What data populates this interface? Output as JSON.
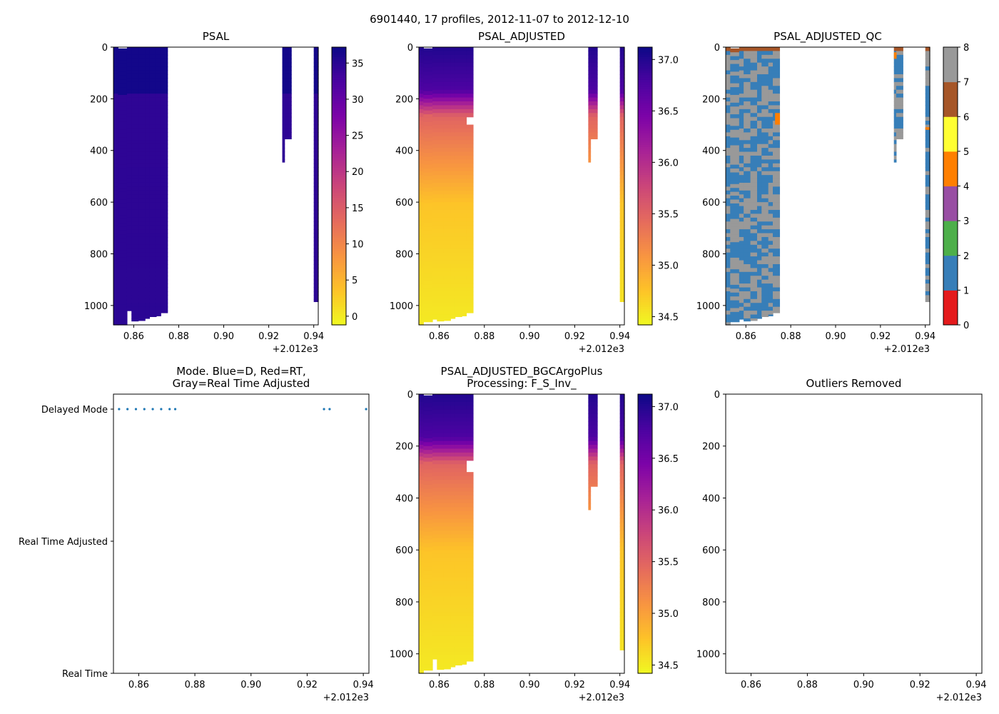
{
  "suptitle": "6901440, 17 profiles, 2012-11-07 to 2012-12-10",
  "offset_label": "+2.012e3",
  "chart_data": [
    {
      "id": "psal",
      "type": "heatmap",
      "title_lines": [
        "PSAL"
      ],
      "xlim": [
        2012.851,
        2012.942
      ],
      "ylim": [
        1075,
        0
      ],
      "xticks": [
        "0.86",
        "0.88",
        "0.90",
        "0.92",
        "0.94"
      ],
      "xtick_values": [
        2012.86,
        2012.88,
        2012.9,
        2012.92,
        2012.94
      ],
      "yticks": [
        "0",
        "200",
        "400",
        "600",
        "800",
        "1000"
      ],
      "ytick_values": [
        0,
        200,
        400,
        600,
        800,
        1000
      ],
      "colormap": "plasma_r",
      "vmin": -1.2,
      "vmax": 37.2,
      "colorbar_ticks": [
        "0",
        "5",
        "10",
        "15",
        "20",
        "25",
        "30",
        "35"
      ],
      "colorbar_values": [
        0,
        5,
        10,
        15,
        20,
        25,
        30,
        35
      ],
      "profiles": [
        {
          "x0": 2012.851,
          "x1": 2012.853,
          "start": 0,
          "max_depth": 1075
        },
        {
          "x0": 2012.853,
          "x1": 2012.857,
          "start": 5,
          "max_depth": 1075
        },
        {
          "x0": 2012.857,
          "x1": 2012.859,
          "start": 0,
          "max_depth": 1020
        },
        {
          "x0": 2012.859,
          "x1": 2012.862,
          "start": 0,
          "max_depth": 1060
        },
        {
          "x0": 2012.862,
          "x1": 2012.865,
          "start": 0,
          "max_depth": 1058
        },
        {
          "x0": 2012.865,
          "x1": 2012.867,
          "start": 0,
          "max_depth": 1050
        },
        {
          "x0": 2012.867,
          "x1": 2012.87,
          "start": 0,
          "max_depth": 1043
        },
        {
          "x0": 2012.87,
          "x1": 2012.872,
          "start": 0,
          "max_depth": 1040
        },
        {
          "x0": 2012.872,
          "x1": 2012.875,
          "start": 0,
          "max_depth": 1028
        },
        {
          "x0": 2012.926,
          "x1": 2012.927,
          "start": 0,
          "max_depth": 445
        },
        {
          "x0": 2012.927,
          "x1": 2012.93,
          "start": 0,
          "max_depth": 355
        },
        {
          "x0": 2012.94,
          "x1": 2012.942,
          "start": 0,
          "max_depth": 985
        }
      ]
    },
    {
      "id": "psal-adjusted",
      "type": "heatmap",
      "title_lines": [
        "PSAL_ADJUSTED"
      ],
      "xlim": [
        2012.851,
        2012.942
      ],
      "ylim": [
        1075,
        0
      ],
      "xticks": [
        "0.86",
        "0.88",
        "0.90",
        "0.92",
        "0.94"
      ],
      "xtick_values": [
        2012.86,
        2012.88,
        2012.9,
        2012.92,
        2012.94
      ],
      "yticks": [
        "0",
        "200",
        "400",
        "600",
        "800",
        "1000"
      ],
      "ytick_values": [
        0,
        200,
        400,
        600,
        800,
        1000
      ],
      "colormap": "plasma_r",
      "vmin": 34.42,
      "vmax": 37.12,
      "colorbar_ticks": [
        "34.5",
        "35.0",
        "35.5",
        "36.0",
        "36.5",
        "37.0"
      ],
      "colorbar_values": [
        34.5,
        35.0,
        35.5,
        36.0,
        36.5,
        37.0
      ],
      "profiles": [
        {
          "x0": 2012.851,
          "x1": 2012.853,
          "start": 0,
          "max_depth": 1075
        },
        {
          "x0": 2012.853,
          "x1": 2012.857,
          "start": 5,
          "max_depth": 1063
        },
        {
          "x0": 2012.857,
          "x1": 2012.859,
          "start": 0,
          "max_depth": 1053
        },
        {
          "x0": 2012.859,
          "x1": 2012.862,
          "start": 0,
          "max_depth": 1060
        },
        {
          "x0": 2012.862,
          "x1": 2012.865,
          "start": 0,
          "max_depth": 1058
        },
        {
          "x0": 2012.865,
          "x1": 2012.867,
          "start": 0,
          "max_depth": 1050
        },
        {
          "x0": 2012.867,
          "x1": 2012.87,
          "start": 0,
          "max_depth": 1043
        },
        {
          "x0": 2012.87,
          "x1": 2012.872,
          "start": 0,
          "max_depth": 1040
        },
        {
          "x0": 2012.872,
          "x1": 2012.875,
          "start": 0,
          "max_depth": 1028,
          "gap": [
            265,
            295
          ]
        },
        {
          "x0": 2012.926,
          "x1": 2012.927,
          "start": 0,
          "max_depth": 445
        },
        {
          "x0": 2012.927,
          "x1": 2012.93,
          "start": 0,
          "max_depth": 355
        },
        {
          "x0": 2012.94,
          "x1": 2012.942,
          "start": 0,
          "max_depth": 985
        }
      ]
    },
    {
      "id": "psal-adjusted-qc",
      "type": "heatmap",
      "title_lines": [
        "PSAL_ADJUSTED_QC"
      ],
      "xlim": [
        2012.851,
        2012.942
      ],
      "ylim": [
        1075,
        0
      ],
      "xticks": [
        "0.86",
        "0.88",
        "0.90",
        "0.92",
        "0.94"
      ],
      "xtick_values": [
        2012.86,
        2012.88,
        2012.9,
        2012.92,
        2012.94
      ],
      "yticks": [
        "0",
        "200",
        "400",
        "600",
        "800",
        "1000"
      ],
      "ytick_values": [
        0,
        200,
        400,
        600,
        800,
        1000
      ],
      "colormap": "qc",
      "vmin": 0,
      "vmax": 8,
      "colorbar_ticks": [
        "0",
        "1",
        "2",
        "3",
        "4",
        "5",
        "6",
        "7",
        "8"
      ],
      "colorbar_values": [
        0,
        1,
        2,
        3,
        4,
        5,
        6,
        7,
        8
      ],
      "qc_colors": [
        "#e41a1c",
        "#377eb8",
        "#4daf4a",
        "#984ea3",
        "#ff7f00",
        "#ffff33",
        "#a65628",
        "#f781bf",
        "#999999"
      ],
      "profiles": [
        {
          "x0": 2012.851,
          "x1": 2012.853,
          "start": 0,
          "max_depth": 1075
        },
        {
          "x0": 2012.853,
          "x1": 2012.857,
          "start": 5,
          "max_depth": 1063
        },
        {
          "x0": 2012.857,
          "x1": 2012.859,
          "start": 0,
          "max_depth": 1053
        },
        {
          "x0": 2012.859,
          "x1": 2012.862,
          "start": 0,
          "max_depth": 1060
        },
        {
          "x0": 2012.862,
          "x1": 2012.865,
          "start": 0,
          "max_depth": 1058
        },
        {
          "x0": 2012.865,
          "x1": 2012.867,
          "start": 0,
          "max_depth": 1050
        },
        {
          "x0": 2012.867,
          "x1": 2012.87,
          "start": 0,
          "max_depth": 1043
        },
        {
          "x0": 2012.87,
          "x1": 2012.872,
          "start": 0,
          "max_depth": 1040
        },
        {
          "x0": 2012.872,
          "x1": 2012.875,
          "start": 0,
          "max_depth": 1028
        },
        {
          "x0": 2012.926,
          "x1": 2012.927,
          "start": 0,
          "max_depth": 445
        },
        {
          "x0": 2012.927,
          "x1": 2012.93,
          "start": 0,
          "max_depth": 355
        },
        {
          "x0": 2012.94,
          "x1": 2012.942,
          "start": 0,
          "max_depth": 985
        }
      ],
      "qc4_patches": [
        {
          "x0": 2012.873,
          "x1": 2012.875,
          "d0": 255,
          "d1": 300
        },
        {
          "x0": 2012.926,
          "x1": 2012.927,
          "d0": 20,
          "d1": 45
        },
        {
          "x0": 2012.94,
          "x1": 2012.942,
          "d0": 310,
          "d1": 320
        }
      ]
    },
    {
      "id": "mode",
      "type": "scatter",
      "title_lines": [
        "Mode. Blue=D, Red=RT,",
        "Gray=Real Time Adjusted"
      ],
      "xlim": [
        2012.851,
        2012.942
      ],
      "xticks": [
        "0.86",
        "0.88",
        "0.90",
        "0.92",
        "0.94"
      ],
      "xtick_values": [
        2012.86,
        2012.88,
        2012.9,
        2012.92,
        2012.94
      ],
      "categories": [
        "Delayed Mode",
        "Real Time Adjusted",
        "Real Time"
      ],
      "point_color": "#1f77b4",
      "points": [
        {
          "x": 2012.853,
          "mode": "Delayed Mode"
        },
        {
          "x": 2012.856,
          "mode": "Delayed Mode"
        },
        {
          "x": 2012.859,
          "mode": "Delayed Mode"
        },
        {
          "x": 2012.862,
          "mode": "Delayed Mode"
        },
        {
          "x": 2012.865,
          "mode": "Delayed Mode"
        },
        {
          "x": 2012.868,
          "mode": "Delayed Mode"
        },
        {
          "x": 2012.871,
          "mode": "Delayed Mode"
        },
        {
          "x": 2012.873,
          "mode": "Delayed Mode"
        },
        {
          "x": 2012.926,
          "mode": "Delayed Mode"
        },
        {
          "x": 2012.928,
          "mode": "Delayed Mode"
        },
        {
          "x": 2012.941,
          "mode": "Delayed Mode"
        }
      ]
    },
    {
      "id": "psal-bgcargoplus",
      "type": "heatmap",
      "title_lines": [
        "PSAL_ADJUSTED_BGCArgoPlus",
        "Processing: F_S_Inv_"
      ],
      "xlim": [
        2012.851,
        2012.942
      ],
      "ylim": [
        1075,
        0
      ],
      "xticks": [
        "0.86",
        "0.88",
        "0.90",
        "0.92",
        "0.94"
      ],
      "xtick_values": [
        2012.86,
        2012.88,
        2012.9,
        2012.92,
        2012.94
      ],
      "yticks": [
        "0",
        "200",
        "400",
        "600",
        "800",
        "1000"
      ],
      "ytick_values": [
        0,
        200,
        400,
        600,
        800,
        1000
      ],
      "colormap": "plasma_r",
      "vmin": 34.42,
      "vmax": 37.12,
      "colorbar_ticks": [
        "34.5",
        "35.0",
        "35.5",
        "36.0",
        "36.5",
        "37.0"
      ],
      "colorbar_values": [
        34.5,
        35.0,
        35.5,
        36.0,
        36.5,
        37.0
      ],
      "profiles": [
        {
          "x0": 2012.851,
          "x1": 2012.853,
          "start": 0,
          "max_depth": 1075
        },
        {
          "x0": 2012.853,
          "x1": 2012.857,
          "start": 5,
          "max_depth": 1063
        },
        {
          "x0": 2012.857,
          "x1": 2012.859,
          "start": 0,
          "max_depth": 1020
        },
        {
          "x0": 2012.859,
          "x1": 2012.862,
          "start": 0,
          "max_depth": 1060
        },
        {
          "x0": 2012.862,
          "x1": 2012.865,
          "start": 0,
          "max_depth": 1058
        },
        {
          "x0": 2012.865,
          "x1": 2012.867,
          "start": 0,
          "max_depth": 1050
        },
        {
          "x0": 2012.867,
          "x1": 2012.87,
          "start": 0,
          "max_depth": 1043
        },
        {
          "x0": 2012.87,
          "x1": 2012.872,
          "start": 0,
          "max_depth": 1040
        },
        {
          "x0": 2012.872,
          "x1": 2012.875,
          "start": 0,
          "max_depth": 1028,
          "gap": [
            255,
            290
          ]
        },
        {
          "x0": 2012.926,
          "x1": 2012.927,
          "start": 0,
          "max_depth": 445
        },
        {
          "x0": 2012.927,
          "x1": 2012.93,
          "start": 0,
          "max_depth": 355
        },
        {
          "x0": 2012.94,
          "x1": 2012.942,
          "start": 0,
          "max_depth": 985
        }
      ]
    },
    {
      "id": "outliers",
      "type": "scatter",
      "title_lines": [
        "Outliers Removed"
      ],
      "xlim": [
        2012.851,
        2012.942
      ],
      "ylim": [
        1075,
        0
      ],
      "xticks": [
        "0.86",
        "0.88",
        "0.90",
        "0.92",
        "0.94"
      ],
      "xtick_values": [
        2012.86,
        2012.88,
        2012.9,
        2012.92,
        2012.94
      ],
      "yticks": [
        "0",
        "200",
        "400",
        "600",
        "800",
        "1000"
      ],
      "ytick_values": [
        0,
        200,
        400,
        600,
        800,
        1000
      ],
      "points": []
    }
  ]
}
